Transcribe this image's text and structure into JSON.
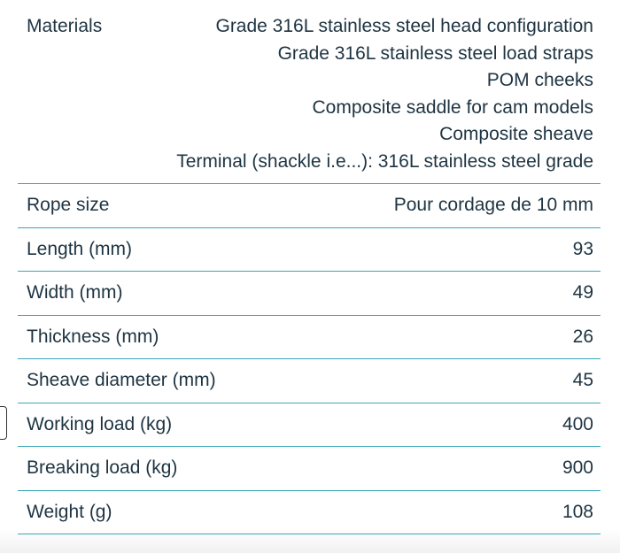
{
  "table": {
    "rows": [
      {
        "label": "Materials",
        "values": [
          "Grade 316L stainless steel head configuration",
          "Grade 316L stainless steel load straps",
          "POM cheeks",
          "Composite saddle for cam models",
          "Composite sheave",
          "Terminal (shackle i.e...): 316L stainless steel grade"
        ]
      },
      {
        "label": "Rope size",
        "values": [
          "Pour cordage de 10 mm"
        ]
      },
      {
        "label": "Length (mm)",
        "values": [
          "93"
        ]
      },
      {
        "label": "Width (mm)",
        "values": [
          "49"
        ]
      },
      {
        "label": "Thickness (mm)",
        "values": [
          "26"
        ]
      },
      {
        "label": "Sheave diameter (mm)",
        "values": [
          "45"
        ]
      },
      {
        "label": "Working load (kg)",
        "values": [
          "400"
        ]
      },
      {
        "label": "Breaking load (kg)",
        "values": [
          "900"
        ]
      },
      {
        "label": "Weight (g)",
        "values": [
          "108"
        ]
      }
    ]
  }
}
